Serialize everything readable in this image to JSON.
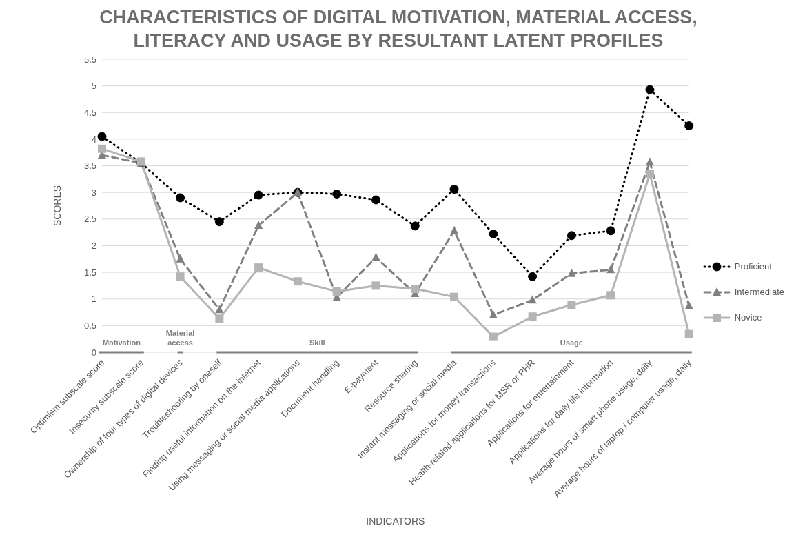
{
  "chart_data": {
    "type": "line",
    "title": "CHARACTERISTICS OF DIGITAL MOTIVATION, MATERIAL ACCESS, LITERACY AND USAGE BY RESULTANT LATENT PROFILES",
    "xlabel": "INDICATORS",
    "ylabel": "SCORES",
    "categories": [
      "Optimism subscale score",
      "Insecurity subscale score",
      "Ownership of four types of digital devices",
      "Troubleshooting by oneself",
      "Finding useful information on the internet",
      "Using messaging or social media applications",
      "Document handling",
      "E-payment",
      "Resource sharing",
      "Instant messaging or social media",
      "Applications for money transactions",
      "Health-related applications for MSR or PHR",
      "Applications for entertainment",
      "Applications for daily life information",
      "Average hours of smart phone usage, daily",
      "Average hours of laptop / computer usage, daily"
    ],
    "series": [
      {
        "name": "Proficient",
        "color": "#000000",
        "marker": "circle",
        "line_style": "dotted",
        "values": [
          4.05,
          3.55,
          2.9,
          2.45,
          2.95,
          3.0,
          2.97,
          2.86,
          2.37,
          3.06,
          2.22,
          1.42,
          2.19,
          2.28,
          4.93,
          4.25
        ]
      },
      {
        "name": "Intermediate",
        "color": "#808080",
        "marker": "triangle",
        "line_style": "dashed",
        "values": [
          3.7,
          3.55,
          1.75,
          0.8,
          2.38,
          3.0,
          1.03,
          1.78,
          1.1,
          2.28,
          0.7,
          0.98,
          1.48,
          1.55,
          3.57,
          0.87
        ]
      },
      {
        "name": "Novice",
        "color": "#b4b4b4",
        "marker": "square",
        "line_style": "solid",
        "values": [
          3.82,
          3.58,
          1.42,
          0.63,
          1.59,
          1.33,
          1.14,
          1.25,
          1.19,
          1.04,
          0.29,
          0.67,
          0.89,
          1.07,
          3.35,
          0.34
        ]
      }
    ],
    "annotations": [
      "Motivation",
      "Material access",
      "Skill",
      "Usage"
    ],
    "ylim": [
      0,
      5.5
    ],
    "yticks": [
      0,
      0.5,
      1,
      1.5,
      2,
      2.5,
      3,
      3.5,
      4,
      4.5,
      5,
      5.5
    ],
    "grid": "y",
    "legend": "right"
  }
}
